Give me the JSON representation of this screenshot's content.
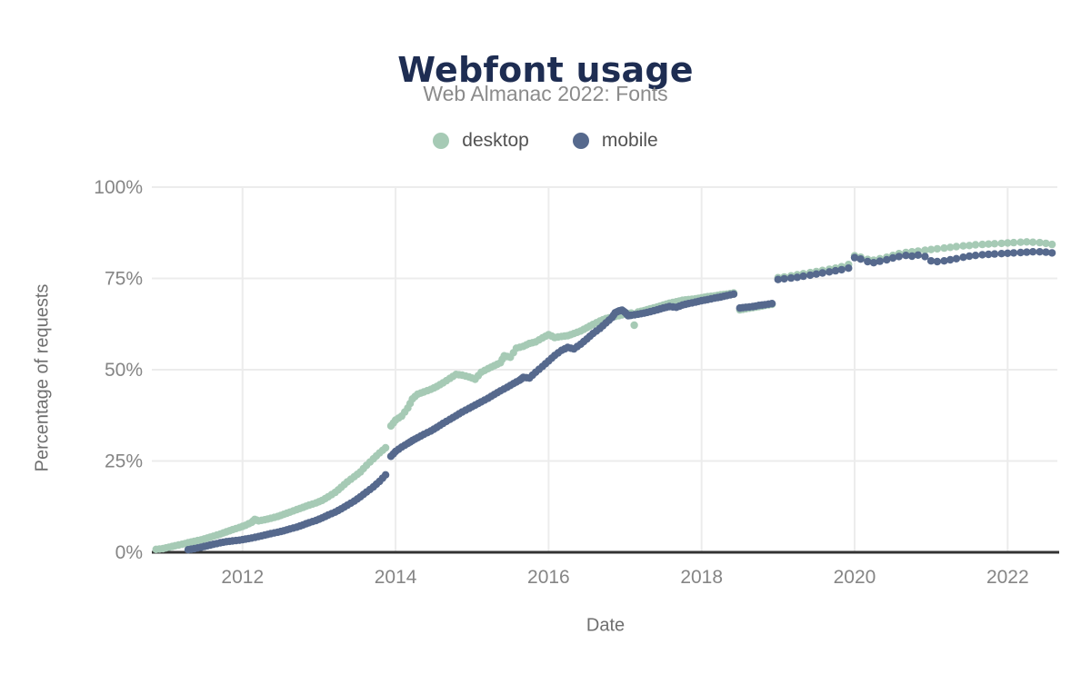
{
  "chart_data": {
    "type": "scatter",
    "title": "Webfont usage",
    "subtitle": "Web Almanac 2022: Fonts",
    "xlabel": "Date",
    "ylabel": "Percentage of requests",
    "xlim": [
      2010.85,
      2022.65
    ],
    "ylim": [
      0,
      100
    ],
    "x_ticks": [
      2012,
      2014,
      2016,
      2018,
      2020,
      2022
    ],
    "y_ticks": [
      0,
      25,
      50,
      75,
      100
    ],
    "y_tick_suffix": "%",
    "grid": true,
    "legend_position": "top",
    "colors": {
      "title": "#1e2d52",
      "subtitle": "#8b8b8b",
      "tick_labels": "#858585",
      "axis_titles": "#6f6f6f",
      "gridline": "#ececec",
      "axis_line": "#333333"
    },
    "series": [
      {
        "name": "desktop",
        "color": "#a6cab5",
        "points": [
          [
            2010.87,
            0.8
          ],
          [
            2010.96,
            1.0
          ],
          [
            2011.04,
            1.4
          ],
          [
            2011.12,
            1.8
          ],
          [
            2011.21,
            2.2
          ],
          [
            2011.29,
            2.6
          ],
          [
            2011.37,
            3.0
          ],
          [
            2011.46,
            3.4
          ],
          [
            2011.54,
            3.9
          ],
          [
            2011.62,
            4.4
          ],
          [
            2011.71,
            5.0
          ],
          [
            2011.79,
            5.6
          ],
          [
            2011.87,
            6.2
          ],
          [
            2011.96,
            6.8
          ],
          [
            2012.04,
            7.4
          ],
          [
            2012.12,
            8.2
          ],
          [
            2012.16,
            9.0
          ],
          [
            2012.21,
            8.6
          ],
          [
            2012.29,
            8.9
          ],
          [
            2012.37,
            9.3
          ],
          [
            2012.46,
            9.8
          ],
          [
            2012.54,
            10.4
          ],
          [
            2012.62,
            11.0
          ],
          [
            2012.71,
            11.7
          ],
          [
            2012.79,
            12.3
          ],
          [
            2012.87,
            12.9
          ],
          [
            2012.96,
            13.5
          ],
          [
            2013.04,
            14.2
          ],
          [
            2013.12,
            15.2
          ],
          [
            2013.21,
            16.4
          ],
          [
            2013.29,
            17.8
          ],
          [
            2013.37,
            19.3
          ],
          [
            2013.46,
            20.7
          ],
          [
            2013.54,
            22.0
          ],
          [
            2013.62,
            23.8
          ],
          [
            2013.71,
            25.6
          ],
          [
            2013.79,
            27.2
          ],
          [
            2013.87,
            28.6
          ],
          [
            2013.94,
            34.6
          ],
          [
            2014.0,
            36.2
          ],
          [
            2014.08,
            37.3
          ],
          [
            2014.16,
            39.5
          ],
          [
            2014.22,
            42.0
          ],
          [
            2014.29,
            43.3
          ],
          [
            2014.37,
            43.9
          ],
          [
            2014.46,
            44.6
          ],
          [
            2014.54,
            45.4
          ],
          [
            2014.62,
            46.4
          ],
          [
            2014.71,
            47.6
          ],
          [
            2014.79,
            48.7
          ],
          [
            2014.87,
            48.5
          ],
          [
            2014.96,
            48.0
          ],
          [
            2015.04,
            47.4
          ],
          [
            2015.12,
            49.3
          ],
          [
            2015.21,
            50.3
          ],
          [
            2015.29,
            51.1
          ],
          [
            2015.37,
            51.9
          ],
          [
            2015.42,
            53.8
          ],
          [
            2015.5,
            53.4
          ],
          [
            2015.58,
            55.9
          ],
          [
            2015.67,
            56.4
          ],
          [
            2015.75,
            57.2
          ],
          [
            2015.83,
            57.6
          ],
          [
            2015.92,
            58.7
          ],
          [
            2016.0,
            59.6
          ],
          [
            2016.08,
            58.8
          ],
          [
            2016.17,
            59.1
          ],
          [
            2016.25,
            59.3
          ],
          [
            2016.33,
            59.9
          ],
          [
            2016.42,
            60.6
          ],
          [
            2016.5,
            61.5
          ],
          [
            2016.58,
            62.4
          ],
          [
            2016.67,
            63.3
          ],
          [
            2016.75,
            64.0
          ],
          [
            2016.83,
            64.4
          ],
          [
            2016.92,
            64.8
          ],
          [
            2017.0,
            65.2
          ],
          [
            2017.08,
            65.5
          ],
          [
            2017.12,
            62.2
          ],
          [
            2017.17,
            65.8
          ],
          [
            2017.25,
            66.2
          ],
          [
            2017.33,
            66.7
          ],
          [
            2017.42,
            67.2
          ],
          [
            2017.5,
            67.7
          ],
          [
            2017.58,
            68.2
          ],
          [
            2017.67,
            68.6
          ],
          [
            2017.75,
            69.0
          ],
          [
            2017.83,
            69.2
          ],
          [
            2017.92,
            69.4
          ],
          [
            2018.0,
            69.7
          ],
          [
            2018.08,
            70.0
          ],
          [
            2018.17,
            70.2
          ],
          [
            2018.25,
            70.5
          ],
          [
            2018.33,
            70.7
          ],
          [
            2018.42,
            71.0
          ],
          [
            2018.5,
            66.4
          ],
          [
            2018.58,
            66.7
          ],
          [
            2018.67,
            67.0
          ],
          [
            2018.75,
            67.3
          ],
          [
            2018.83,
            67.6
          ],
          [
            2018.92,
            67.9
          ],
          [
            2019.0,
            75.2
          ],
          [
            2019.08,
            75.4
          ],
          [
            2019.17,
            75.7
          ],
          [
            2019.25,
            76.0
          ],
          [
            2019.33,
            76.3
          ],
          [
            2019.42,
            76.6
          ],
          [
            2019.5,
            76.9
          ],
          [
            2019.58,
            77.2
          ],
          [
            2019.67,
            77.5
          ],
          [
            2019.75,
            77.8
          ],
          [
            2019.83,
            78.2
          ],
          [
            2019.92,
            78.8
          ],
          [
            2020.0,
            81.2
          ],
          [
            2020.08,
            80.8
          ],
          [
            2020.17,
            80.2
          ],
          [
            2020.25,
            80.0
          ],
          [
            2020.33,
            80.4
          ],
          [
            2020.42,
            80.8
          ],
          [
            2020.5,
            81.3
          ],
          [
            2020.58,
            81.8
          ],
          [
            2020.67,
            82.1
          ],
          [
            2020.75,
            82.3
          ],
          [
            2020.83,
            82.5
          ],
          [
            2020.92,
            82.7
          ],
          [
            2021.0,
            82.9
          ],
          [
            2021.08,
            83.1
          ],
          [
            2021.17,
            83.3
          ],
          [
            2021.25,
            83.5
          ],
          [
            2021.33,
            83.7
          ],
          [
            2021.42,
            83.9
          ],
          [
            2021.5,
            84.0
          ],
          [
            2021.58,
            84.2
          ],
          [
            2021.67,
            84.3
          ],
          [
            2021.75,
            84.4
          ],
          [
            2021.83,
            84.5
          ],
          [
            2021.92,
            84.6
          ],
          [
            2022.0,
            84.7
          ],
          [
            2022.08,
            84.8
          ],
          [
            2022.17,
            84.9
          ],
          [
            2022.25,
            85.0
          ],
          [
            2022.33,
            84.9
          ],
          [
            2022.42,
            84.8
          ],
          [
            2022.5,
            84.6
          ],
          [
            2022.58,
            84.3
          ]
        ]
      },
      {
        "name": "mobile",
        "color": "#56698d",
        "points": [
          [
            2011.29,
            0.7
          ],
          [
            2011.37,
            1.0
          ],
          [
            2011.46,
            1.4
          ],
          [
            2011.54,
            1.8
          ],
          [
            2011.62,
            2.2
          ],
          [
            2011.71,
            2.6
          ],
          [
            2011.79,
            2.9
          ],
          [
            2011.87,
            3.1
          ],
          [
            2011.96,
            3.3
          ],
          [
            2012.04,
            3.6
          ],
          [
            2012.12,
            3.9
          ],
          [
            2012.21,
            4.3
          ],
          [
            2012.29,
            4.7
          ],
          [
            2012.37,
            5.1
          ],
          [
            2012.46,
            5.5
          ],
          [
            2012.54,
            5.9
          ],
          [
            2012.62,
            6.4
          ],
          [
            2012.71,
            6.9
          ],
          [
            2012.79,
            7.5
          ],
          [
            2012.87,
            8.1
          ],
          [
            2012.96,
            8.7
          ],
          [
            2013.04,
            9.4
          ],
          [
            2013.12,
            10.2
          ],
          [
            2013.21,
            11.0
          ],
          [
            2013.29,
            11.9
          ],
          [
            2013.37,
            12.9
          ],
          [
            2013.46,
            14.0
          ],
          [
            2013.54,
            15.2
          ],
          [
            2013.62,
            16.5
          ],
          [
            2013.71,
            17.9
          ],
          [
            2013.79,
            19.4
          ],
          [
            2013.87,
            21.2
          ],
          [
            2013.94,
            26.3
          ],
          [
            2014.0,
            27.6
          ],
          [
            2014.08,
            28.8
          ],
          [
            2014.16,
            29.8
          ],
          [
            2014.22,
            30.6
          ],
          [
            2014.29,
            31.4
          ],
          [
            2014.37,
            32.3
          ],
          [
            2014.46,
            33.2
          ],
          [
            2014.54,
            34.2
          ],
          [
            2014.62,
            35.3
          ],
          [
            2014.71,
            36.4
          ],
          [
            2014.79,
            37.4
          ],
          [
            2014.87,
            38.4
          ],
          [
            2014.96,
            39.4
          ],
          [
            2015.04,
            40.3
          ],
          [
            2015.12,
            41.2
          ],
          [
            2015.21,
            42.2
          ],
          [
            2015.29,
            43.2
          ],
          [
            2015.37,
            44.2
          ],
          [
            2015.46,
            45.2
          ],
          [
            2015.54,
            46.2
          ],
          [
            2015.62,
            47.1
          ],
          [
            2015.67,
            47.9
          ],
          [
            2015.75,
            47.7
          ],
          [
            2015.83,
            49.3
          ],
          [
            2015.92,
            50.9
          ],
          [
            2016.0,
            52.4
          ],
          [
            2016.08,
            53.9
          ],
          [
            2016.17,
            55.3
          ],
          [
            2016.25,
            56.1
          ],
          [
            2016.33,
            55.7
          ],
          [
            2016.42,
            57.0
          ],
          [
            2016.5,
            58.4
          ],
          [
            2016.58,
            59.9
          ],
          [
            2016.67,
            61.3
          ],
          [
            2016.75,
            62.8
          ],
          [
            2016.83,
            64.3
          ],
          [
            2016.87,
            65.6
          ],
          [
            2016.92,
            66.1
          ],
          [
            2016.96,
            66.3
          ],
          [
            2017.0,
            65.7
          ],
          [
            2017.04,
            64.8
          ],
          [
            2017.08,
            64.9
          ],
          [
            2017.17,
            65.2
          ],
          [
            2017.25,
            65.5
          ],
          [
            2017.33,
            65.9
          ],
          [
            2017.42,
            66.4
          ],
          [
            2017.5,
            66.9
          ],
          [
            2017.58,
            67.3
          ],
          [
            2017.67,
            67.1
          ],
          [
            2017.75,
            67.7
          ],
          [
            2017.83,
            68.1
          ],
          [
            2017.92,
            68.5
          ],
          [
            2018.0,
            68.9
          ],
          [
            2018.08,
            69.2
          ],
          [
            2018.17,
            69.6
          ],
          [
            2018.25,
            69.9
          ],
          [
            2018.33,
            70.3
          ],
          [
            2018.42,
            70.7
          ],
          [
            2018.5,
            66.9
          ],
          [
            2018.58,
            67.1
          ],
          [
            2018.67,
            67.3
          ],
          [
            2018.75,
            67.6
          ],
          [
            2018.83,
            67.8
          ],
          [
            2018.92,
            68.1
          ],
          [
            2019.0,
            74.7
          ],
          [
            2019.08,
            74.9
          ],
          [
            2019.17,
            75.1
          ],
          [
            2019.25,
            75.3
          ],
          [
            2019.33,
            75.6
          ],
          [
            2019.42,
            75.9
          ],
          [
            2019.5,
            76.2
          ],
          [
            2019.58,
            76.5
          ],
          [
            2019.67,
            76.8
          ],
          [
            2019.75,
            77.1
          ],
          [
            2019.83,
            77.4
          ],
          [
            2019.92,
            77.8
          ],
          [
            2020.0,
            80.7
          ],
          [
            2020.08,
            80.3
          ],
          [
            2020.17,
            79.6
          ],
          [
            2020.25,
            79.3
          ],
          [
            2020.33,
            79.7
          ],
          [
            2020.42,
            80.1
          ],
          [
            2020.5,
            80.6
          ],
          [
            2020.58,
            81.0
          ],
          [
            2020.67,
            81.3
          ],
          [
            2020.75,
            81.1
          ],
          [
            2020.83,
            81.4
          ],
          [
            2020.92,
            81.0
          ],
          [
            2021.0,
            79.8
          ],
          [
            2021.08,
            79.6
          ],
          [
            2021.17,
            79.8
          ],
          [
            2021.25,
            80.1
          ],
          [
            2021.33,
            80.4
          ],
          [
            2021.42,
            80.8
          ],
          [
            2021.5,
            81.1
          ],
          [
            2021.58,
            81.3
          ],
          [
            2021.67,
            81.5
          ],
          [
            2021.75,
            81.6
          ],
          [
            2021.83,
            81.7
          ],
          [
            2021.92,
            81.8
          ],
          [
            2022.0,
            81.9
          ],
          [
            2022.08,
            82.0
          ],
          [
            2022.17,
            82.1
          ],
          [
            2022.25,
            82.2
          ],
          [
            2022.33,
            82.3
          ],
          [
            2022.42,
            82.3
          ],
          [
            2022.5,
            82.2
          ],
          [
            2022.58,
            82.0
          ]
        ]
      }
    ]
  }
}
